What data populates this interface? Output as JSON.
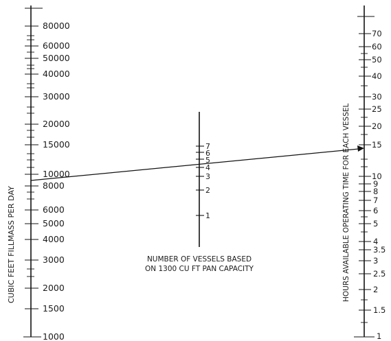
{
  "left_scale": {
    "label": "CUBIC FEET FILLMASS PER DAY",
    "ticks": [
      "80000",
      "60000",
      "50000",
      "40000",
      "30000",
      "20000",
      "15000",
      "10000",
      "8000",
      "6000",
      "5000",
      "4000",
      "3000",
      "2000",
      "1500",
      "1000"
    ]
  },
  "middle_scale": {
    "ticks": [
      "7",
      "6",
      "5",
      "4",
      "3",
      "2",
      "1"
    ],
    "caption_line1": "NUMBER OF VESSELS BASED",
    "caption_line2": "ON 1300 CU FT PAN CAPACITY"
  },
  "right_scale": {
    "label": "HOURS AVAILABLE OPERATING TIME FOR EACH VESSEL",
    "ticks": [
      "70",
      "60",
      "50",
      "40",
      "30",
      "25",
      "20",
      "15",
      "10",
      "9",
      "8",
      "7",
      "6",
      "5",
      "4",
      "3.5",
      "3",
      "2.5",
      "2",
      "1.5",
      "1"
    ]
  },
  "colors": {
    "ink": "#111111",
    "paper": "#ffffff"
  }
}
